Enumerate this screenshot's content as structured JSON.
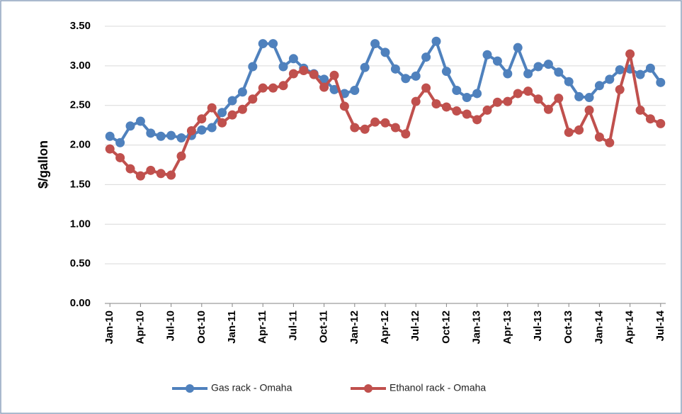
{
  "chart_data": {
    "type": "line",
    "y_label": "$/gallon",
    "legend": "bottom",
    "grid": true,
    "categories": [
      "Jan-10",
      null,
      null,
      "Apr-10",
      null,
      null,
      "Jul-10",
      null,
      null,
      "Oct-10",
      null,
      null,
      "Jan-11",
      null,
      null,
      "Apr-11",
      null,
      null,
      "Jul-11",
      null,
      null,
      "Oct-11",
      null,
      null,
      "Jan-12",
      null,
      null,
      "Apr-12",
      null,
      null,
      "Jul-12",
      null,
      null,
      "Oct-12",
      null,
      null,
      "Jan-13",
      null,
      null,
      "Apr-13",
      null,
      null,
      "Jul-13",
      null,
      null,
      "Oct-13",
      null,
      null,
      "Jan-14",
      null,
      null,
      "Apr-14",
      null,
      null,
      "Jul-14"
    ],
    "series": [
      {
        "name": "Gas rack - Omaha",
        "color": "#4f81bd",
        "values": [
          2.11,
          2.03,
          2.24,
          2.3,
          2.15,
          2.11,
          2.12,
          2.09,
          2.12,
          2.19,
          2.22,
          2.41,
          2.56,
          2.67,
          2.99,
          3.28,
          3.28,
          2.99,
          3.09,
          2.97,
          2.9,
          2.83,
          2.7,
          2.65,
          2.69,
          2.98,
          3.28,
          3.17,
          2.96,
          2.84,
          2.87,
          3.11,
          3.31,
          2.93,
          2.69,
          2.6,
          2.65,
          3.14,
          3.06,
          2.9,
          3.23,
          2.9,
          2.99,
          3.02,
          2.92,
          2.8,
          2.61,
          2.6,
          2.75,
          2.83,
          2.95,
          2.96,
          2.89,
          2.97,
          2.79
        ]
      },
      {
        "name": "Ethanol rack - Omaha",
        "color": "#c0504d",
        "values": [
          1.95,
          1.84,
          1.7,
          1.61,
          1.68,
          1.64,
          1.62,
          1.86,
          2.18,
          2.33,
          2.47,
          2.28,
          2.38,
          2.45,
          2.58,
          2.72,
          2.72,
          2.75,
          2.9,
          2.94,
          2.89,
          2.73,
          2.88,
          2.49,
          2.22,
          2.2,
          2.29,
          2.28,
          2.22,
          2.14,
          2.55,
          2.72,
          2.52,
          2.48,
          2.43,
          2.39,
          2.32,
          2.44,
          2.54,
          2.55,
          2.65,
          2.68,
          2.58,
          2.45,
          2.59,
          2.16,
          2.19,
          2.44,
          2.1,
          2.03,
          2.7,
          3.15,
          2.44,
          2.33,
          2.27
        ]
      }
    ],
    "ylim": [
      0,
      3.5
    ],
    "yticks": [
      {
        "value": 0,
        "label": "0.00"
      },
      {
        "value": 0.5,
        "label": "0.50"
      },
      {
        "value": 1,
        "label": "1.00"
      },
      {
        "value": 1.5,
        "label": "1.50"
      },
      {
        "value": 2,
        "label": "2.00"
      },
      {
        "value": 2.5,
        "label": "2.50"
      },
      {
        "value": 3,
        "label": "3.00"
      },
      {
        "value": 3.5,
        "label": "3.50"
      }
    ]
  }
}
